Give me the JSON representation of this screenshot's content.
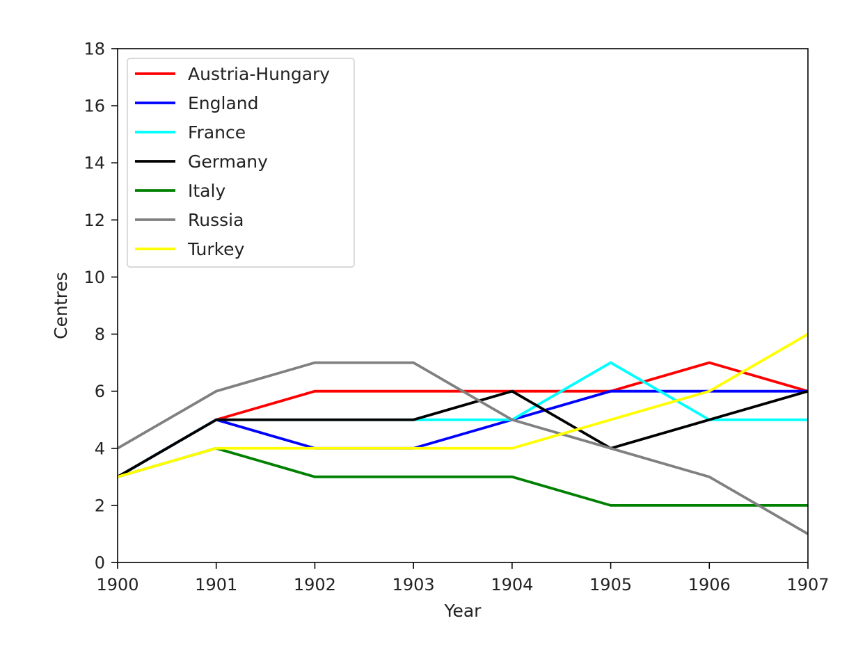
{
  "chart_data": {
    "type": "line",
    "title": "",
    "xlabel": "Year",
    "ylabel": "Centres",
    "x": [
      1900,
      1901,
      1902,
      1903,
      1904,
      1905,
      1906,
      1907
    ],
    "xlim": [
      1900,
      1907
    ],
    "ylim": [
      0,
      18
    ],
    "x_ticks": [
      "1900",
      "1901",
      "1902",
      "1903",
      "1904",
      "1905",
      "1906",
      "1907"
    ],
    "y_ticks": [
      "0",
      "2",
      "4",
      "6",
      "8",
      "10",
      "12",
      "14",
      "16",
      "18"
    ],
    "grid": false,
    "legend_position": "top-left",
    "series": [
      {
        "name": "Austria-Hungary",
        "color": "#ff0000",
        "values": [
          3,
          5,
          6,
          6,
          6,
          6,
          7,
          6
        ]
      },
      {
        "name": "England",
        "color": "#0000ff",
        "values": [
          3,
          5,
          4,
          4,
          5,
          6,
          6,
          6
        ]
      },
      {
        "name": "France",
        "color": "#00ffff",
        "values": [
          3,
          5,
          5,
          5,
          5,
          7,
          5,
          5
        ]
      },
      {
        "name": "Germany",
        "color": "#000000",
        "values": [
          3,
          5,
          5,
          5,
          6,
          4,
          5,
          6
        ]
      },
      {
        "name": "Italy",
        "color": "#008000",
        "values": [
          3,
          4,
          3,
          3,
          3,
          2,
          2,
          2
        ]
      },
      {
        "name": "Russia",
        "color": "#808080",
        "values": [
          4,
          6,
          7,
          7,
          5,
          4,
          3,
          1
        ]
      },
      {
        "name": "Turkey",
        "color": "#ffff00",
        "values": [
          3,
          4,
          4,
          4,
          4,
          5,
          6,
          8
        ]
      }
    ]
  }
}
